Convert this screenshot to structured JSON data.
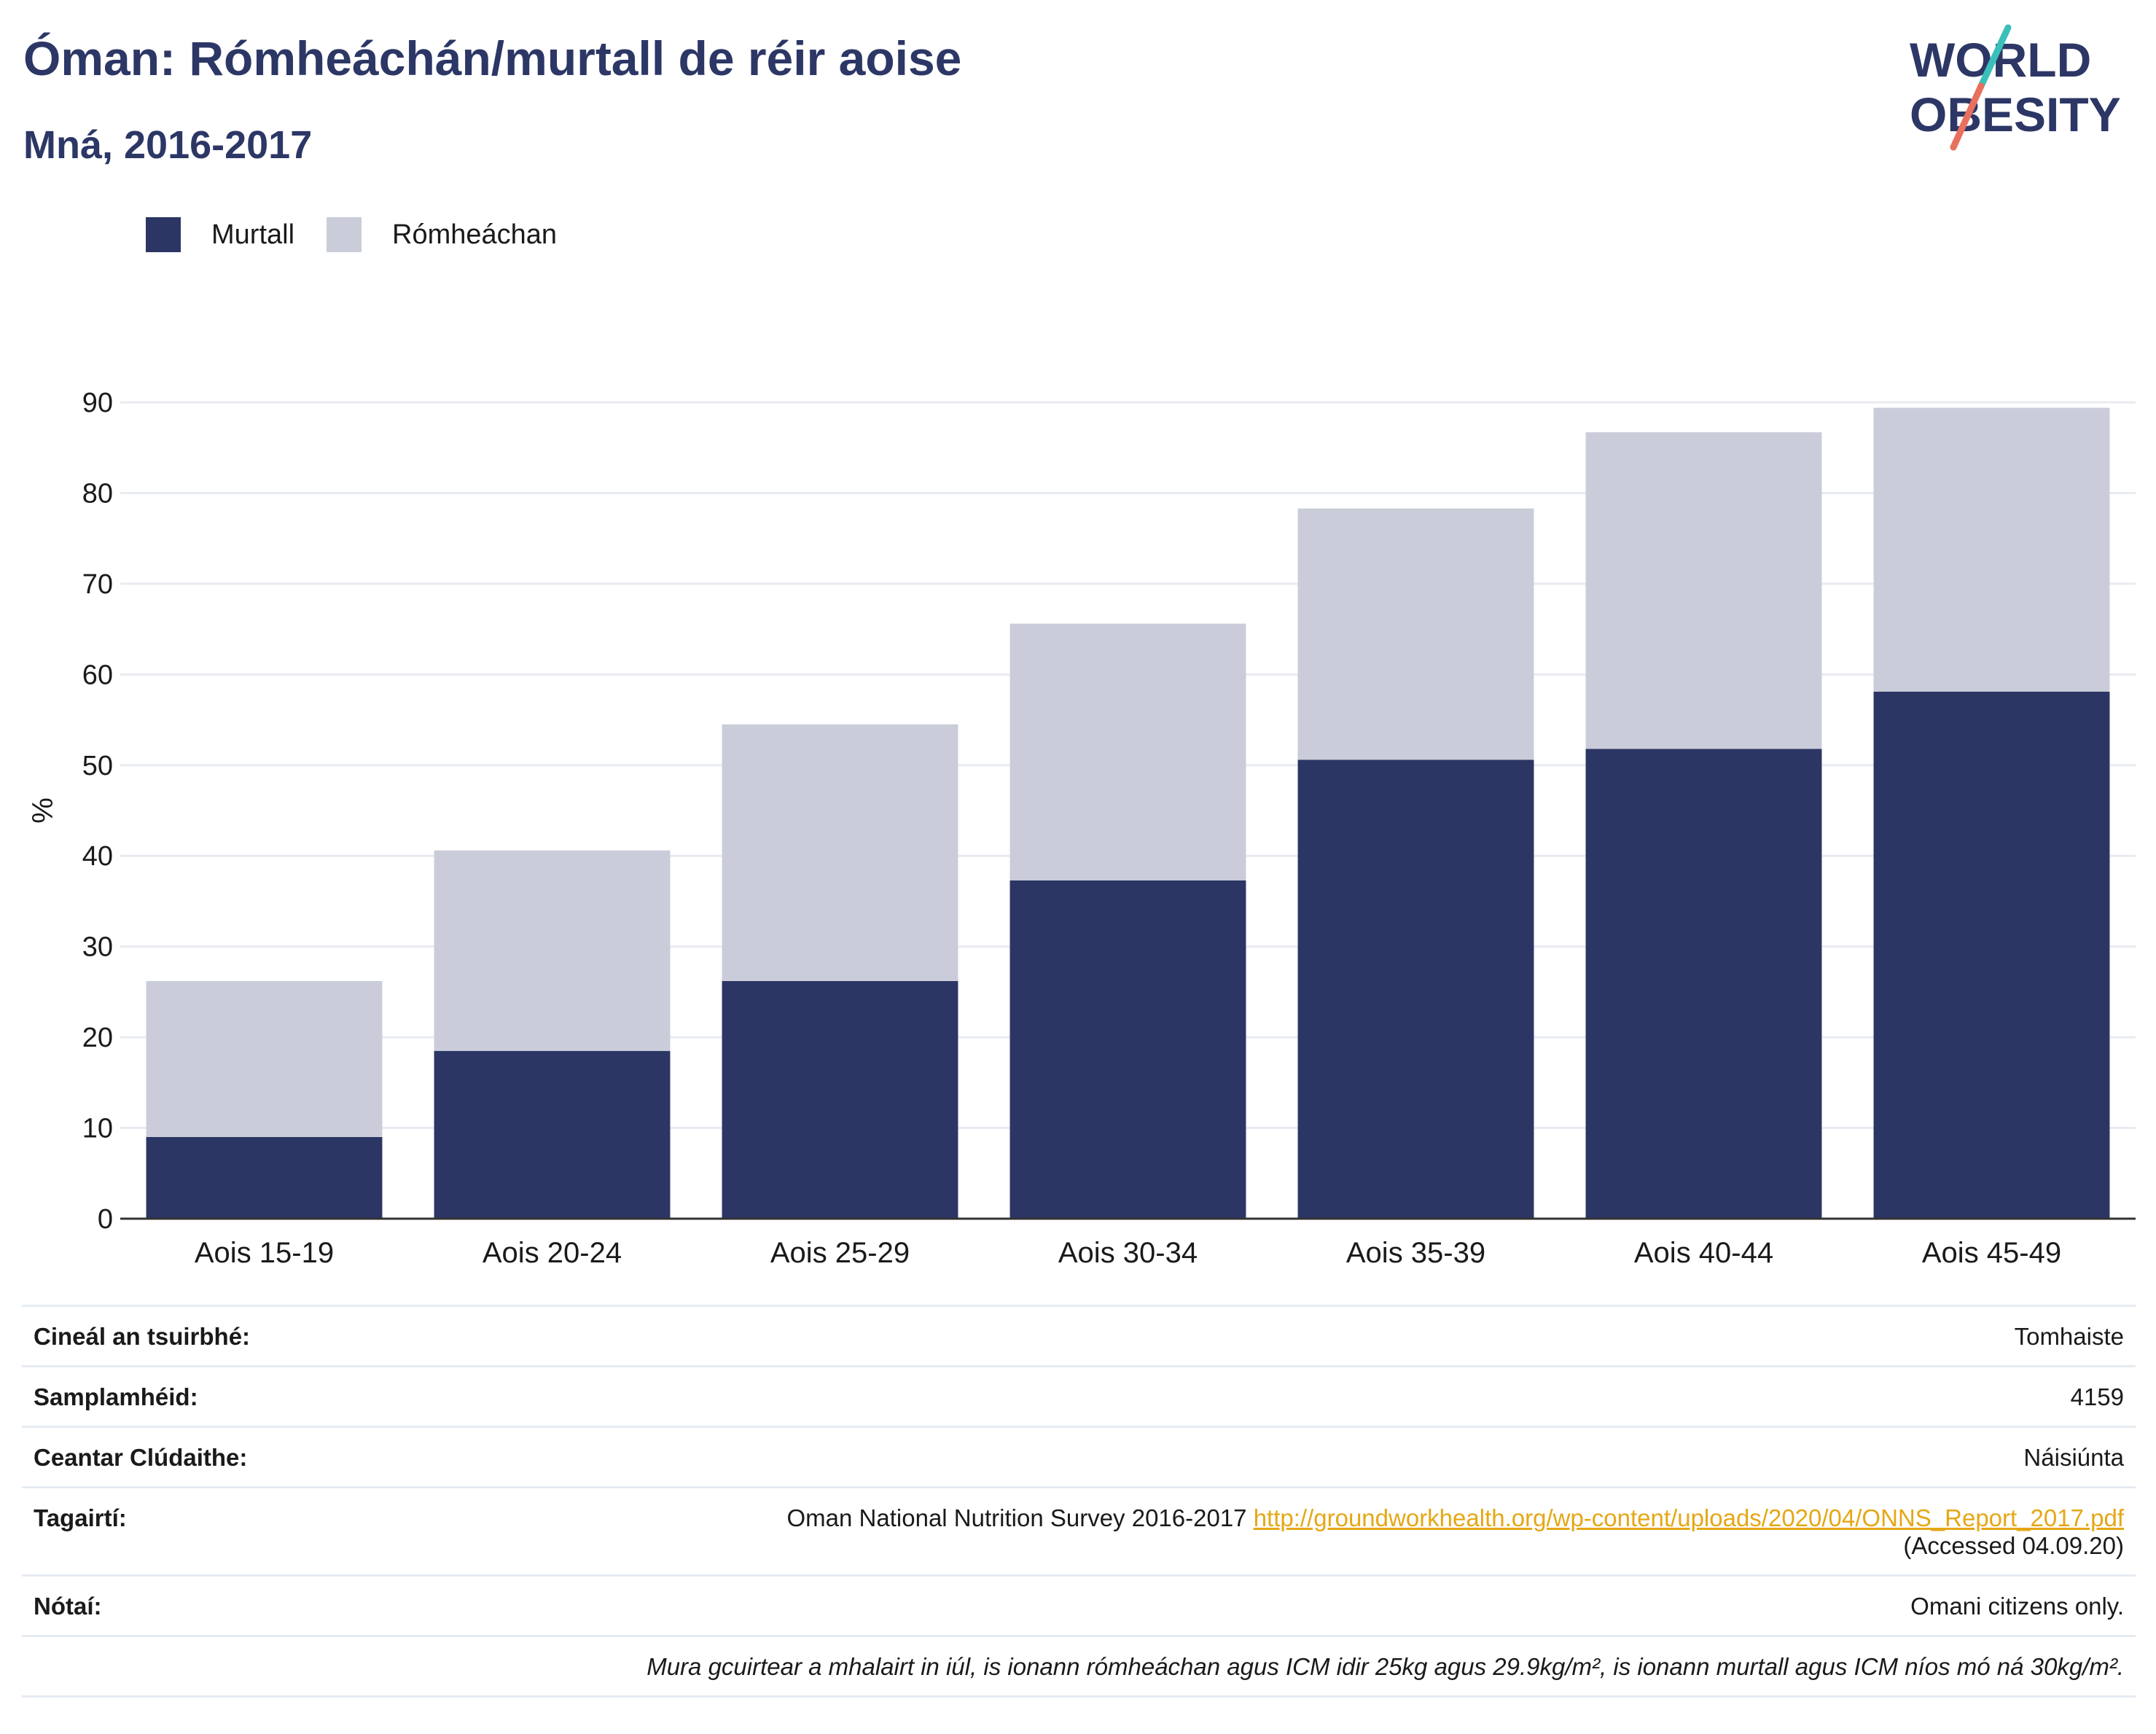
{
  "title": "Óman: Rómheáchán/murtall de réir aoise",
  "subtitle": "Mná, 2016-2017",
  "logo": {
    "line1": "WORLD",
    "line2": "OBESITY"
  },
  "colors": {
    "obese": "#2b3665",
    "overweight": "#cacdd9",
    "title": "#2c3766",
    "link": "#e5a715",
    "logo_teal": "#3bbfb9",
    "logo_coral": "#e8705e"
  },
  "legend": [
    {
      "label": "Murtall",
      "color": "#2b3665"
    },
    {
      "label": "Rómheáchan",
      "color": "#cacdd9"
    }
  ],
  "chart_data": {
    "type": "bar",
    "stacked": true,
    "categories": [
      "Aois 15-19",
      "Aois 20-24",
      "Aois 25-29",
      "Aois 30-34",
      "Aois 35-39",
      "Aois 40-44",
      "Aois 45-49"
    ],
    "series": [
      {
        "name": "Murtall",
        "values": [
          9.0,
          18.5,
          26.2,
          37.3,
          50.6,
          51.8,
          58.1
        ]
      },
      {
        "name": "Rómheáchan",
        "values": [
          17.2,
          22.1,
          28.3,
          28.3,
          27.7,
          34.9,
          31.3
        ]
      }
    ],
    "ylabel": "%",
    "ylim": [
      0,
      90
    ],
    "yticks": [
      0,
      10,
      20,
      30,
      40,
      50,
      60,
      70,
      80,
      90
    ],
    "grid": true,
    "legend_position": "top-left"
  },
  "info": {
    "survey_type": {
      "label": "Cineál an tsuirbhé:",
      "value": "Tomhaiste"
    },
    "sample_size": {
      "label": "Samplamhéid:",
      "value": "4159"
    },
    "coverage": {
      "label": "Ceantar Clúdaithe:",
      "value": "Náisiúnta"
    },
    "references": {
      "label": "Tagairtí:",
      "text": "Oman National Nutrition Survey 2016-2017",
      "url": "http://groundworkhealth.org/wp-content/uploads/2020/04/ONNS_Report_2017.pdf",
      "accessed": "(Accessed 04.09.20)"
    },
    "notes": {
      "label": "Nótaí:",
      "value": "Omani citizens only."
    },
    "definition": "Mura gcuirtear a mhalairt in iúl, is ionann rómheáchan agus ICM idir 25kg agus 29.9kg/m², is ionann murtall agus ICM níos mó ná 30kg/m²."
  }
}
